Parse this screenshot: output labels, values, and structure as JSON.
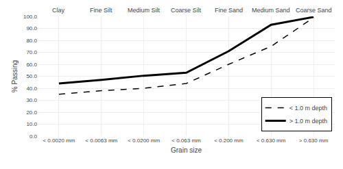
{
  "chart_data": {
    "type": "line",
    "categories": [
      "< 0.0020 mm",
      "< 0.0063 mm",
      "< 0.0200 mm",
      "< 0.063 mm",
      "< 0.200 mm",
      "< 0.630 mm",
      "> 0.630 mm"
    ],
    "annotations": [
      {
        "category": "< 0.0020 mm",
        "text": "Clay"
      },
      {
        "category": "< 0.0063 mm",
        "text": "Fine Silt"
      },
      {
        "category": "< 0.0200 mm",
        "text": "Medium Silt"
      },
      {
        "category": "< 0.063 mm",
        "text": "Coarse Silt"
      },
      {
        "category": "< 0.200 mm",
        "text": "Fine Sand"
      },
      {
        "category": "< 0.630 mm",
        "text": "Medium Sand"
      },
      {
        "category": "> 0.630 mm",
        "text": "Coarse Sand"
      }
    ],
    "xlabel": "Grain size",
    "ylabel": "% Passing",
    "series": [
      {
        "name": "< 1.0 m depth",
        "color": "#000000",
        "line_style": "dashed",
        "values": [
          35.0,
          38.0,
          40.0,
          44.0,
          60.0,
          75.0,
          99.0
        ]
      },
      {
        "name": "> 1.0 m depth",
        "color": "#000000",
        "line_style": "solid",
        "values": [
          44.0,
          47.0,
          50.5,
          53.0,
          71.0,
          93.0,
          99.5
        ]
      }
    ],
    "ylim": [
      0.0,
      100.0
    ],
    "yticks": [
      {
        "value": 0.0,
        "label": "0.0"
      },
      {
        "value": 10.0,
        "label": "10.0"
      },
      {
        "value": 20.0,
        "label": "20.0"
      },
      {
        "value": 30.0,
        "label": "30.0"
      },
      {
        "value": 40.0,
        "label": "40.0"
      },
      {
        "value": 50.0,
        "label": "50.0"
      },
      {
        "value": 60.0,
        "label": "60.0"
      },
      {
        "value": 70.0,
        "label": "70.0"
      },
      {
        "value": 80.0,
        "label": "80.0"
      },
      {
        "value": 90.0,
        "label": "90.0"
      },
      {
        "value": 100.0,
        "label": "100.0"
      }
    ],
    "grid": true,
    "legend": "lower right"
  }
}
